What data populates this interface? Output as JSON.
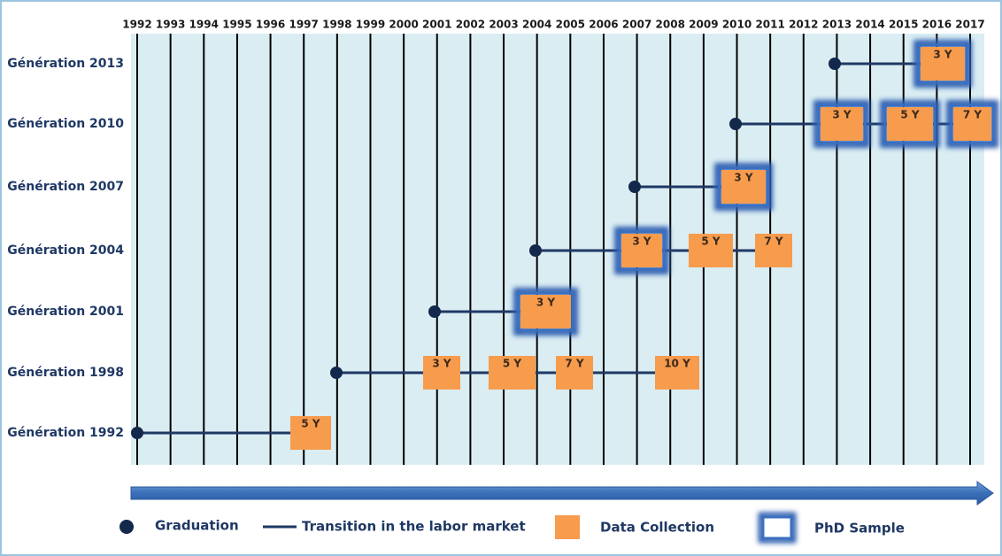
{
  "years": [
    1992,
    1993,
    1994,
    1995,
    1996,
    1997,
    1998,
    1999,
    2000,
    2001,
    2002,
    2003,
    2004,
    2005,
    2006,
    2007,
    2008,
    2009,
    2010,
    2011,
    2012,
    2013,
    2014,
    2015,
    2016,
    2017
  ],
  "rows": [
    {
      "label": "Génération 2013",
      "collections": [
        {
          "label": "3 Y",
          "phd": true
        }
      ]
    },
    {
      "label": "Génération 2010",
      "collections": [
        {
          "label": "3 Y",
          "phd": true
        },
        {
          "label": "5 Y",
          "phd": true
        },
        {
          "label": "7 Y",
          "phd": true
        }
      ]
    },
    {
      "label": "Génération 2007",
      "collections": [
        {
          "label": "3 Y",
          "phd": true
        }
      ]
    },
    {
      "label": "Génération 2004",
      "collections": [
        {
          "label": "3 Y",
          "phd": true
        },
        {
          "label": "5 Y",
          "phd": false
        },
        {
          "label": "7 Y",
          "phd": false
        }
      ]
    },
    {
      "label": "Génération 2001",
      "collections": [
        {
          "label": "3 Y",
          "phd": true
        }
      ]
    },
    {
      "label": "Génération 1998",
      "collections": [
        {
          "label": "3 Y",
          "phd": false
        },
        {
          "label": "5 Y",
          "phd": false
        },
        {
          "label": "7 Y",
          "phd": false
        },
        {
          "label": "10 Y",
          "phd": false
        }
      ]
    },
    {
      "label": "Génération 1992",
      "collections": [
        {
          "label": "5 Y",
          "phd": false
        }
      ]
    }
  ],
  "legend": {
    "graduation": "Graduation",
    "transition": "Transition in the labor market",
    "data_collection": "Data Collection",
    "phd_sample": "PhD Sample"
  }
}
